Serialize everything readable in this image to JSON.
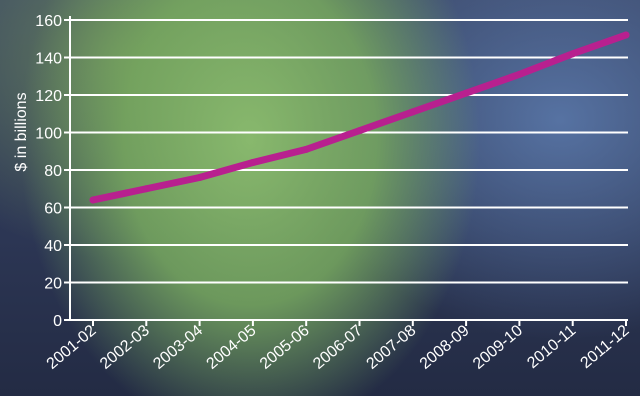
{
  "chart_data": {
    "type": "line",
    "title": "",
    "xlabel": "",
    "ylabel": "$ in billions",
    "categories": [
      "2001-02",
      "2002-03",
      "2003-04",
      "2004-05",
      "2005-06",
      "2006-07",
      "2007-08",
      "2008-09",
      "2009-10",
      "2010-11",
      "2011-12"
    ],
    "series": [
      {
        "values": [
          64,
          70,
          76,
          84,
          91,
          101,
          111,
          121,
          131,
          142,
          152
        ]
      }
    ],
    "ylim": [
      0,
      160
    ],
    "yticks": [
      0,
      20,
      40,
      60,
      80,
      100,
      120,
      140,
      160
    ],
    "grid": true,
    "legend": "none",
    "colors": {
      "line": "#b8208f",
      "grid": "#ffffff",
      "axis": "#ffffff"
    }
  }
}
